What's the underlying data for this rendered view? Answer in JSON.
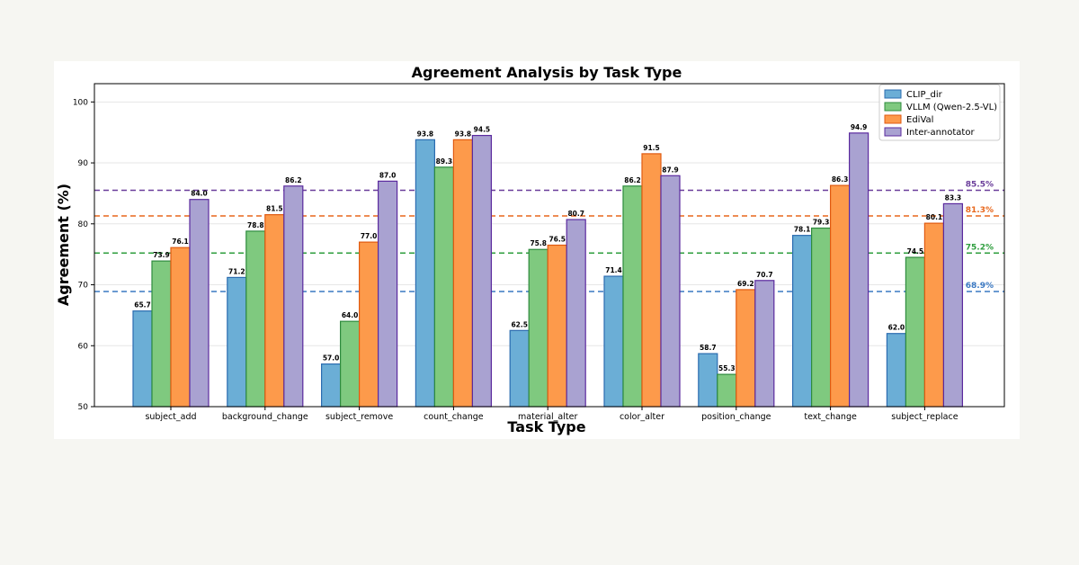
{
  "chart_data": {
    "type": "bar",
    "title": "Agreement Analysis by Task Type",
    "xlabel": "Task Type",
    "ylabel": "Agreement (%)",
    "ylim": [
      50,
      103
    ],
    "yticks": [
      50,
      60,
      70,
      80,
      90,
      100
    ],
    "grid": "horizontal",
    "legend_position": "top-right",
    "categories": [
      "subject_add",
      "background_change",
      "subject_remove",
      "count_change",
      "material_alter",
      "color_alter",
      "position_change",
      "text_change",
      "subject_replace"
    ],
    "series": [
      {
        "name": "CLIP_dir",
        "color": "#6baed6",
        "edge": "#2b6cb0",
        "values": [
          65.7,
          71.2,
          57.0,
          93.8,
          62.5,
          71.4,
          58.7,
          78.1,
          62.0
        ]
      },
      {
        "name": "VLLM (Qwen-2.5-VL)",
        "color": "#7fc97f",
        "edge": "#2e8b3e",
        "values": [
          73.9,
          78.8,
          64.0,
          89.3,
          75.8,
          86.2,
          55.3,
          79.3,
          74.5
        ]
      },
      {
        "name": "EdiVal",
        "color": "#fd9a4b",
        "edge": "#e05a10",
        "values": [
          76.1,
          81.5,
          77.0,
          93.8,
          76.5,
          91.5,
          69.2,
          86.3,
          80.1
        ]
      },
      {
        "name": "Inter-annotator",
        "color": "#a9a2d1",
        "edge": "#5b2a9e",
        "values": [
          84.0,
          86.2,
          87.0,
          94.5,
          80.7,
          87.9,
          70.7,
          94.9,
          83.3
        ]
      }
    ],
    "reference_lines": [
      {
        "value": 85.5,
        "label": "85.5%",
        "color": "#6a3d9a"
      },
      {
        "value": 81.3,
        "label": "81.3%",
        "color": "#e8671c"
      },
      {
        "value": 75.2,
        "label": "75.2%",
        "color": "#2e9e3e"
      },
      {
        "value": 68.9,
        "label": "68.9%",
        "color": "#3a78c2"
      }
    ]
  }
}
